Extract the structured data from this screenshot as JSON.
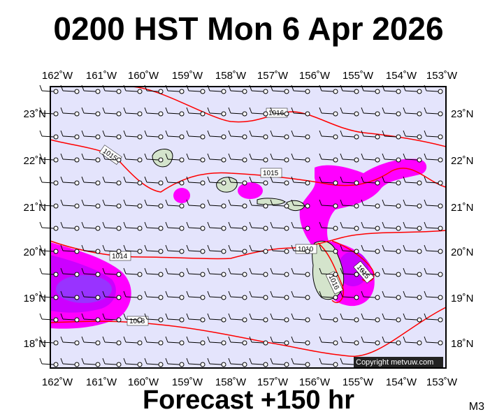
{
  "header": {
    "title": "0200 HST Mon 6 Apr 2026"
  },
  "footer": {
    "forecast_label": "Forecast +150 hr",
    "model_code": "M3"
  },
  "map": {
    "lon_labels": [
      "162˚W",
      "161˚W",
      "160˚W",
      "159˚W",
      "158˚W",
      "157˚W",
      "156˚W",
      "155˚W",
      "154˚W",
      "153˚W"
    ],
    "lat_labels": [
      "23˚N",
      "22˚N",
      "21˚N",
      "20˚N",
      "19˚N",
      "18˚N"
    ],
    "background_color": "#e4e4fc",
    "isobar_color": "#ff0000",
    "precip_colors": [
      "#ff00ff",
      "#cc00ff",
      "#9933ff"
    ],
    "isobars": [
      {
        "label": "1016"
      },
      {
        "label": "1015"
      },
      {
        "label": "1015"
      },
      {
        "label": "1014"
      },
      {
        "label": "1010"
      },
      {
        "label": "1015"
      },
      {
        "label": "1016"
      },
      {
        "label": "1008"
      }
    ],
    "copyright": "Copyright metvuw.com"
  }
}
